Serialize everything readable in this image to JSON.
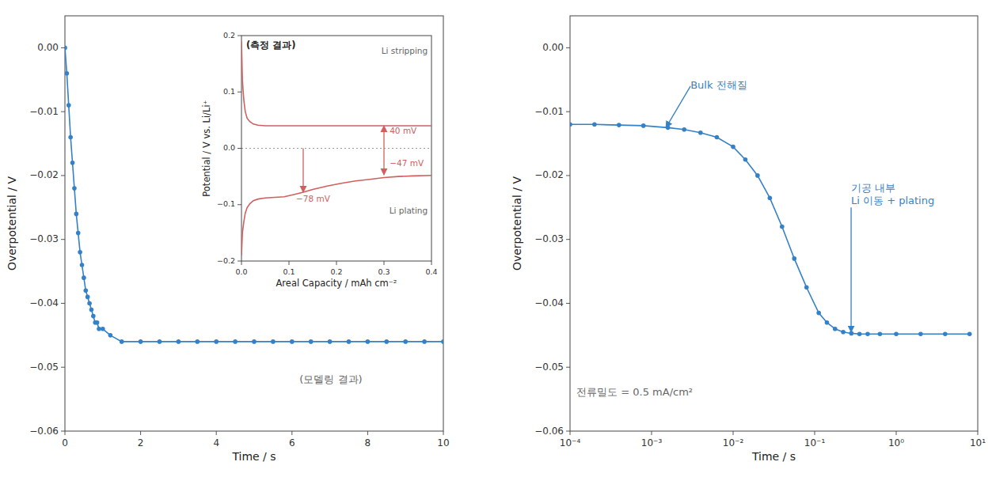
{
  "chart_data": [
    {
      "type": "line",
      "marker": "o",
      "color": "#3381c8",
      "xlabel": "Time / s",
      "ylabel": "Overpotential / V",
      "xlim": [
        0,
        10
      ],
      "ylim": [
        -0.06,
        0.005
      ],
      "xticks": [
        0,
        2,
        4,
        6,
        8,
        10
      ],
      "yticks": [
        {
          "value": 0,
          "label": "0.00"
        },
        {
          "value": -0.01,
          "label": "−0.01"
        },
        {
          "value": -0.02,
          "label": "−0.02"
        },
        {
          "value": -0.03,
          "label": "−0.03"
        },
        {
          "value": -0.04,
          "label": "−0.04"
        },
        {
          "value": -0.05,
          "label": "−0.05"
        },
        {
          "value": -0.06,
          "label": "−0.06"
        }
      ],
      "x": [
        0.0,
        0.05,
        0.1,
        0.15,
        0.2,
        0.25,
        0.3,
        0.35,
        0.4,
        0.45,
        0.5,
        0.55,
        0.6,
        0.65,
        0.7,
        0.75,
        0.8,
        0.85,
        0.9,
        1.0,
        1.2,
        1.5,
        2.0,
        2.5,
        3.0,
        3.5,
        4.0,
        4.5,
        5.0,
        5.5,
        6.0,
        6.5,
        7.0,
        7.5,
        8.0,
        8.5,
        9.0,
        9.5,
        10.0
      ],
      "values": [
        0.0,
        -0.004,
        -0.009,
        -0.014,
        -0.018,
        -0.022,
        -0.026,
        -0.029,
        -0.032,
        -0.034,
        -0.036,
        -0.038,
        -0.039,
        -0.04,
        -0.041,
        -0.042,
        -0.043,
        -0.043,
        -0.044,
        -0.044,
        -0.045,
        -0.046,
        -0.046,
        -0.046,
        -0.046,
        -0.046,
        -0.046,
        -0.046,
        -0.046,
        -0.046,
        -0.046,
        -0.046,
        -0.046,
        -0.046,
        -0.046,
        -0.046,
        -0.046,
        -0.046,
        -0.046
      ],
      "annotations": [
        {
          "text": "(모델링 결과)",
          "x": 6.2,
          "y": -0.052
        }
      ]
    },
    {
      "type": "line",
      "title": "(측정 결과)",
      "xlabel": "Areal Capacity / mAh cm⁻²",
      "ylabel": "Potential / V vs. Li/Li⁺",
      "xlim": [
        0,
        0.4
      ],
      "ylim": [
        -0.2,
        0.2
      ],
      "xticks": [
        {
          "value": 0,
          "label": "0.0"
        },
        {
          "value": 0.1,
          "label": "0.1"
        },
        {
          "value": 0.2,
          "label": "0.2"
        },
        {
          "value": 0.3,
          "label": "0.3"
        },
        {
          "value": 0.4,
          "label": "0.4"
        }
      ],
      "yticks": [
        {
          "value": -0.2,
          "label": "−0.2"
        },
        {
          "value": -0.1,
          "label": "−0.1"
        },
        {
          "value": 0,
          "label": "0.0"
        },
        {
          "value": 0.1,
          "label": "0.1"
        },
        {
          "value": 0.2,
          "label": "0.2"
        }
      ],
      "series": [
        {
          "color": "#d06060",
          "x": [
            0.0,
            0.002,
            0.005,
            0.008,
            0.012,
            0.018,
            0.025,
            0.035,
            0.05,
            0.07,
            0.1,
            0.13,
            0.16,
            0.2,
            0.25,
            0.3,
            0.35,
            0.4
          ],
          "values": [
            0.19,
            0.12,
            0.085,
            0.065,
            0.053,
            0.047,
            0.043,
            0.041,
            0.04,
            0.04,
            0.04,
            0.04,
            0.04,
            0.04,
            0.04,
            0.04,
            0.04,
            0.04
          ]
        },
        {
          "color": "#d06060",
          "x": [
            0.0,
            0.002,
            0.005,
            0.008,
            0.012,
            0.018,
            0.025,
            0.035,
            0.05,
            0.07,
            0.09,
            0.11,
            0.13,
            0.15,
            0.18,
            0.21,
            0.24,
            0.27,
            0.3,
            0.33,
            0.36,
            0.4
          ],
          "values": [
            -0.19,
            -0.15,
            -0.13,
            -0.115,
            -0.105,
            -0.098,
            -0.093,
            -0.09,
            -0.088,
            -0.087,
            -0.086,
            -0.082,
            -0.078,
            -0.073,
            -0.067,
            -0.062,
            -0.058,
            -0.055,
            -0.052,
            -0.05,
            -0.049,
            -0.048
          ]
        }
      ],
      "annotations": [
        {
          "text": "Li stripping",
          "x": 0.392,
          "y": 0.172
        },
        {
          "text": "Li plating",
          "x": 0.392,
          "y": -0.112
        },
        {
          "text": "40 mV",
          "x": 0.312,
          "y": 0.03,
          "arrow": [
            [
              0.3,
              0
            ],
            [
              0.3,
              0.04
            ]
          ]
        },
        {
          "text": "−47 mV",
          "x": 0.312,
          "y": -0.0275,
          "arrow": [
            [
              0.3,
              0
            ],
            [
              0.3,
              -0.047
            ]
          ]
        },
        {
          "text": "−78 mV",
          "x": 0.115,
          "y": -0.09,
          "arrow": [
            [
              0.13,
              0
            ],
            [
              0.13,
              -0.078
            ]
          ]
        }
      ]
    },
    {
      "type": "line",
      "marker": "o",
      "log": "x",
      "color": "#3381c8",
      "xlabel": "Time / s",
      "ylabel": "Overpotential / V",
      "xlim": [
        0.0001,
        10
      ],
      "ylim": [
        -0.06,
        0.005
      ],
      "xticks": [
        {
          "value": 0.0001,
          "label": "10⁻⁴"
        },
        {
          "value": 0.001,
          "label": "10⁻³"
        },
        {
          "value": 0.01,
          "label": "10⁻²"
        },
        {
          "value": 0.1,
          "label": "10⁻¹"
        },
        {
          "value": 1,
          "label": "10⁰"
        },
        {
          "value": 10,
          "label": "10¹"
        }
      ],
      "yticks": [
        {
          "value": 0,
          "label": "0.00"
        },
        {
          "value": -0.01,
          "label": "−0.01"
        },
        {
          "value": -0.02,
          "label": "−0.02"
        },
        {
          "value": -0.03,
          "label": "−0.03"
        },
        {
          "value": -0.04,
          "label": "−0.04"
        },
        {
          "value": -0.05,
          "label": "−0.05"
        },
        {
          "value": -0.06,
          "label": "−0.06"
        }
      ],
      "x": [
        0.0001,
        0.000199526,
        0.000398107,
        0.000794328,
        0.00158489,
        0.00251189,
        0.00398107,
        0.00630957,
        0.01,
        0.0141254,
        0.0199526,
        0.0281838,
        0.0398107,
        0.0562341,
        0.0794328,
        0.112202,
        0.141254,
        0.177828,
        0.223872,
        0.281838,
        0.354813,
        0.446684,
        0.630957,
        1,
        1.99526,
        3.98107,
        7.94328
      ],
      "values": [
        -0.012,
        -0.012,
        -0.0121,
        -0.0122,
        -0.0125,
        -0.0128,
        -0.0133,
        -0.014,
        -0.0155,
        -0.0175,
        -0.02,
        -0.0235,
        -0.028,
        -0.033,
        -0.0375,
        -0.0415,
        -0.043,
        -0.044,
        -0.0445,
        -0.0447,
        -0.0448,
        -0.0448,
        -0.0448,
        -0.0448,
        -0.0448,
        -0.0448,
        -0.0448
      ],
      "annotations": [
        {
          "text": "Bulk 전해질",
          "x": 0.003,
          "y": -0.006,
          "arrow": [
            [
              0.003,
              -0.006
            ],
            [
              0.0015,
              -0.0125
            ]
          ]
        },
        {
          "text": "기공 내부\nLi 이동 + plating",
          "x": 0.28,
          "y": -0.025,
          "arrow": [
            [
              0.28,
              -0.025
            ],
            [
              0.28,
              -0.0445
            ]
          ]
        },
        {
          "text": "전류밀도 = 0.5 mA/cm²",
          "x": 0.00012,
          "y": -0.054
        }
      ]
    }
  ]
}
